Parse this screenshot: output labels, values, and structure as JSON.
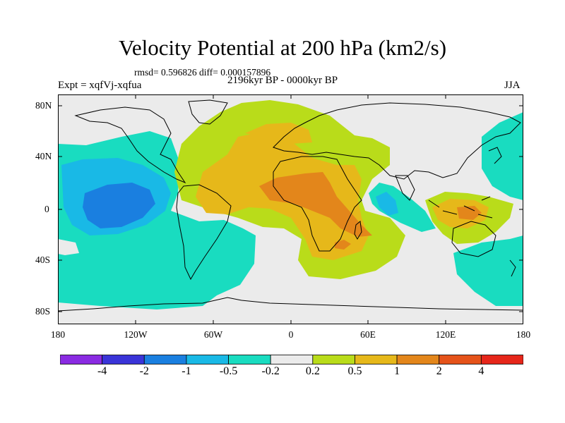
{
  "figure": {
    "title": "Velocity Potential at 200 hPa (km2/s)",
    "stats": "rmsd= 0.596826 diff= 0.000157896",
    "experiment": "Expt = xqfVj-xqfua",
    "period": "2196kyr BP - 0000kyr BP",
    "season": "JJA"
  },
  "colors": {
    "ocean_land_background": "#ebebeb",
    "coastline": "#000000",
    "levels": [
      "#8a2be2",
      "#3a34d8",
      "#1a7fe0",
      "#19b9e6",
      "#19dcc0",
      "#ebebeb",
      "#b9dc1a",
      "#e6b81a",
      "#e3861b",
      "#e5531a",
      "#e6261a"
    ]
  },
  "chart_data": {
    "type": "heatmap",
    "projection": "cylindrical-equidistant",
    "xlim": [
      -180,
      180
    ],
    "ylim": [
      -90,
      90
    ],
    "x_ticks": [
      "180",
      "120W",
      "60W",
      "0",
      "60E",
      "120E",
      "180"
    ],
    "y_ticks": [
      "80N",
      "40N",
      "0",
      "40S",
      "80S"
    ],
    "colorbar_labels": [
      "-4",
      "-2",
      "-1",
      "-0.5",
      "-0.2",
      "0.2",
      "0.5",
      "1",
      "2",
      "4"
    ],
    "regions": [
      {
        "level": "-0.5 to -0.2",
        "description": "Pacific / Americas west",
        "lon_range": [
          -180,
          -30
        ],
        "lat_range": [
          -75,
          45
        ]
      },
      {
        "level": "-1 to -0.5",
        "description": "central Pacific",
        "lon_range": [
          -175,
          -95
        ],
        "lat_range": [
          -25,
          30
        ]
      },
      {
        "level": "-2 to -1",
        "description": "central Pacific core",
        "lon_range": [
          -160,
          -115
        ],
        "lat_range": [
          -15,
          15
        ]
      },
      {
        "level": "0.2 to 0.5",
        "description": "Atlantic / Africa / Europe",
        "lon_range": [
          -90,
          85
        ],
        "lat_range": [
          -55,
          85
        ]
      },
      {
        "level": "0.5 to 1",
        "description": "Africa / Atlantic",
        "lon_range": [
          -55,
          65
        ],
        "lat_range": [
          -35,
          55
        ]
      },
      {
        "level": "1 to 2",
        "description": "central Africa",
        "lon_range": [
          -20,
          55
        ],
        "lat_range": [
          -20,
          20
        ]
      },
      {
        "level": "-1 to -0.2",
        "description": "western Indian Ocean",
        "lon_range": [
          45,
          90
        ],
        "lat_range": [
          -20,
          15
        ]
      },
      {
        "level": "0.2 to 1",
        "description": "Maritime Continent",
        "lon_range": [
          110,
          170
        ],
        "lat_range": [
          -25,
          10
        ]
      }
    ]
  }
}
